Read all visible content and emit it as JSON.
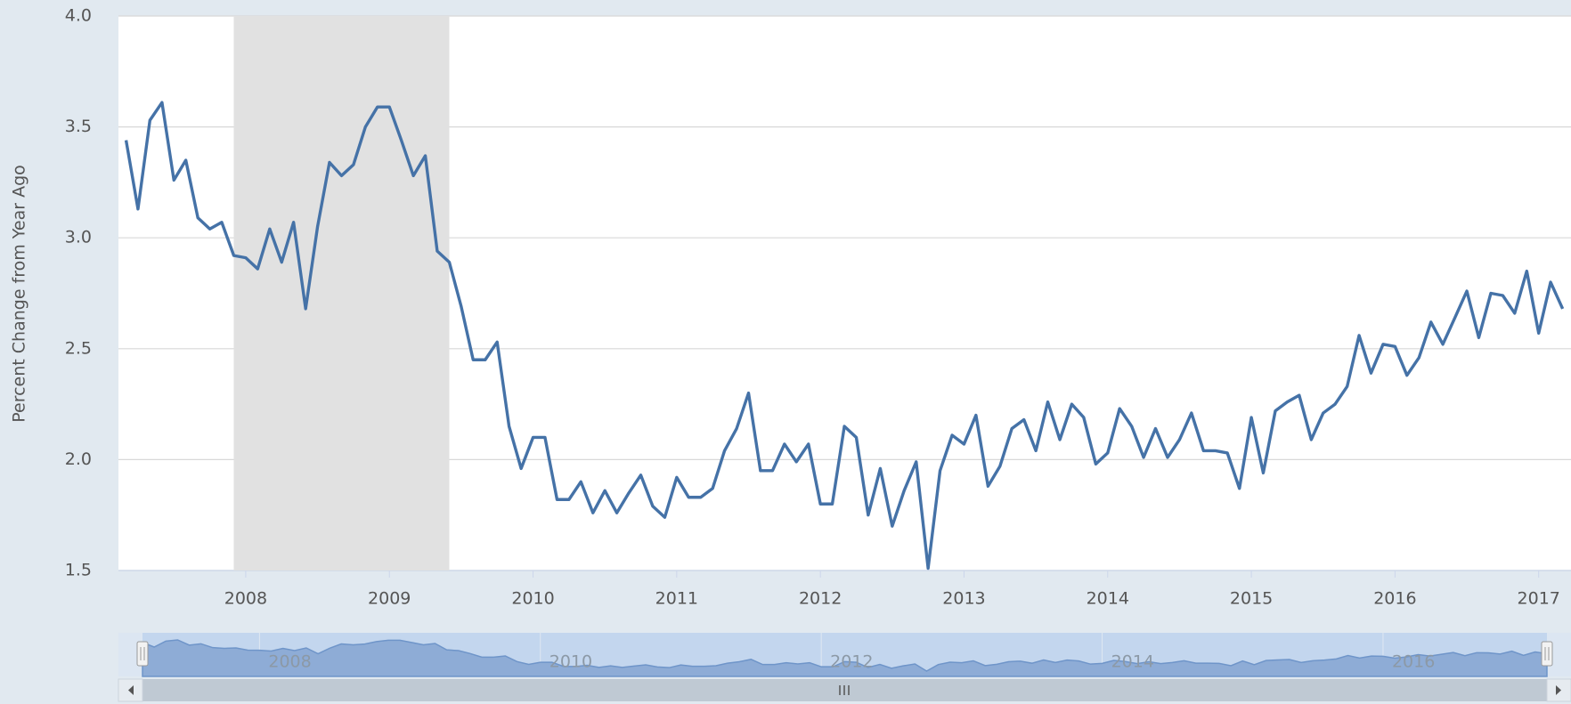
{
  "chart_data": {
    "type": "line",
    "y_axis_title": "Percent Change from Year Ago",
    "x": [
      2007.167,
      2007.25,
      2007.333,
      2007.417,
      2007.5,
      2007.583,
      2007.667,
      2007.75,
      2007.833,
      2007.917,
      2008,
      2008.083,
      2008.167,
      2008.25,
      2008.333,
      2008.417,
      2008.5,
      2008.583,
      2008.667,
      2008.75,
      2008.833,
      2008.917,
      2009,
      2009.083,
      2009.167,
      2009.25,
      2009.333,
      2009.417,
      2009.5,
      2009.583,
      2009.667,
      2009.75,
      2009.833,
      2009.917,
      2010,
      2010.083,
      2010.167,
      2010.25,
      2010.333,
      2010.417,
      2010.5,
      2010.583,
      2010.667,
      2010.75,
      2010.833,
      2010.917,
      2011,
      2011.083,
      2011.167,
      2011.25,
      2011.333,
      2011.417,
      2011.5,
      2011.583,
      2011.667,
      2011.75,
      2011.833,
      2011.917,
      2012,
      2012.083,
      2012.167,
      2012.25,
      2012.333,
      2012.417,
      2012.5,
      2012.583,
      2012.667,
      2012.75,
      2012.833,
      2012.917,
      2013,
      2013.083,
      2013.167,
      2013.25,
      2013.333,
      2013.417,
      2013.5,
      2013.583,
      2013.667,
      2013.75,
      2013.833,
      2013.917,
      2014,
      2014.083,
      2014.167,
      2014.25,
      2014.333,
      2014.417,
      2014.5,
      2014.583,
      2014.667,
      2014.75,
      2014.833,
      2014.917,
      2015,
      2015.083,
      2015.167,
      2015.25,
      2015.333,
      2015.417,
      2015.5,
      2015.583,
      2015.667,
      2015.75,
      2015.833,
      2015.917,
      2016,
      2016.083,
      2016.167,
      2016.25,
      2016.333,
      2016.417,
      2016.5,
      2016.583,
      2016.667,
      2016.75,
      2016.833,
      2016.917,
      2017,
      2017.083,
      2017.167
    ],
    "values": [
      3.44,
      3.13,
      3.53,
      3.61,
      3.26,
      3.35,
      3.09,
      3.04,
      3.07,
      2.92,
      2.91,
      2.86,
      3.04,
      2.89,
      3.07,
      2.68,
      3.05,
      3.34,
      3.28,
      3.33,
      3.5,
      3.59,
      3.59,
      3.44,
      3.28,
      3.37,
      2.94,
      2.89,
      2.69,
      2.45,
      2.45,
      2.53,
      2.15,
      1.96,
      2.1,
      2.1,
      1.82,
      1.82,
      1.9,
      1.76,
      1.86,
      1.76,
      1.85,
      1.93,
      1.79,
      1.74,
      1.92,
      1.83,
      1.83,
      1.87,
      2.04,
      2.14,
      2.3,
      1.95,
      1.95,
      2.07,
      1.99,
      2.07,
      1.8,
      1.8,
      2.15,
      2.1,
      1.75,
      1.96,
      1.7,
      1.86,
      1.99,
      1.51,
      1.95,
      2.11,
      2.07,
      2.2,
      1.88,
      1.97,
      2.14,
      2.18,
      2.04,
      2.26,
      2.09,
      2.25,
      2.19,
      1.98,
      2.03,
      2.23,
      2.15,
      2.01,
      2.14,
      2.01,
      2.09,
      2.21,
      2.04,
      2.04,
      2.03,
      1.87,
      2.19,
      1.94,
      2.22,
      2.26,
      2.29,
      2.09,
      2.21,
      2.25,
      2.33,
      2.56,
      2.39,
      2.52,
      2.51,
      2.38,
      2.46,
      2.62,
      2.52,
      2.64,
      2.76,
      2.55,
      2.75,
      2.74,
      2.66,
      2.85,
      2.57,
      2.8,
      2.68
    ],
    "color": "#4572a7",
    "xlim": [
      2007.114,
      2017.225
    ],
    "xticks": [
      2008,
      2009,
      2010,
      2011,
      2012,
      2013,
      2014,
      2015,
      2016,
      2017
    ],
    "ylim": [
      1.5,
      4.0
    ],
    "yticks": [
      1.5,
      {
        "value": 2,
        "label": "2.0"
      },
      2.5,
      {
        "value": 3,
        "label": "3.0"
      },
      3.5,
      {
        "value": 4,
        "label": "4.0"
      }
    ],
    "grid": true,
    "shaded_ranges": [
      [
        2007.917,
        2009.417
      ]
    ],
    "shade_color": "#e1e1e1",
    "navigator": {
      "xticks": [
        2008,
        2010,
        2012,
        2014,
        2016
      ]
    }
  }
}
